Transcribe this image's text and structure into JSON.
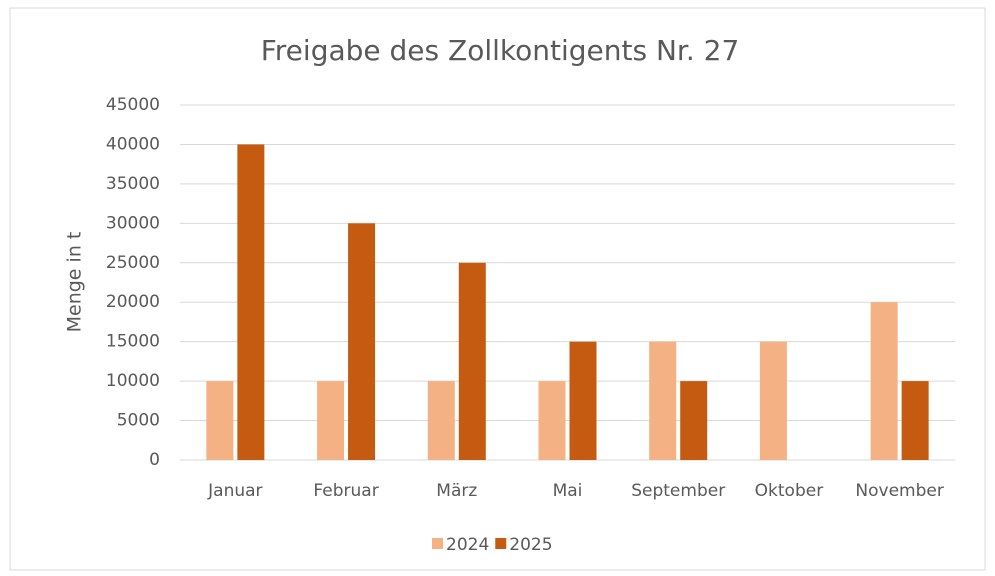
{
  "chart_data": {
    "type": "bar",
    "title": "Freigabe des Zollkontigents Nr. 27",
    "y_label": "Menge in t",
    "categories": [
      "Januar",
      "Februar",
      "März",
      "Mai",
      "September",
      "Oktober",
      "November"
    ],
    "series": [
      {
        "name": "2024",
        "color": "#f4b183",
        "values": [
          10000,
          10000,
          10000,
          10000,
          15000,
          15000,
          20000
        ]
      },
      {
        "name": "2025",
        "color": "#c55a11",
        "values": [
          40000,
          30000,
          25000,
          15000,
          10000,
          0,
          10000
        ]
      }
    ],
    "ylim": [
      0,
      45000
    ],
    "yticks": [
      0,
      5000,
      10000,
      15000,
      20000,
      25000,
      30000,
      35000,
      40000,
      45000
    ],
    "grid": true,
    "legend": "bottom"
  }
}
